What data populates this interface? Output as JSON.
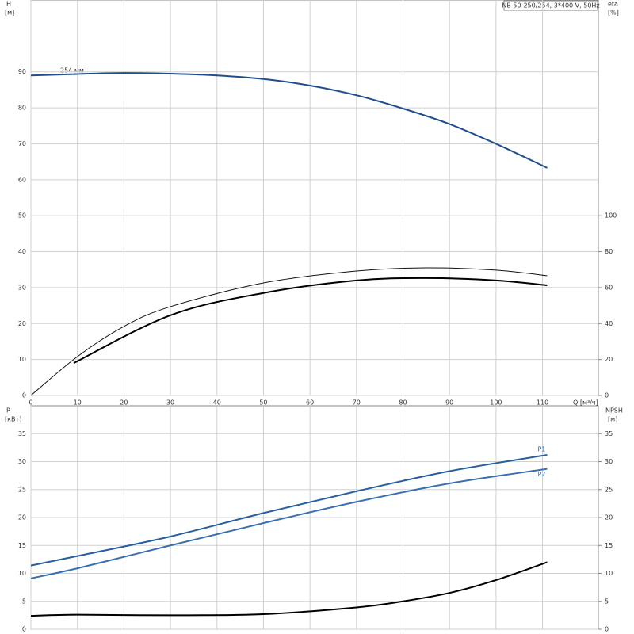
{
  "chart_data": [
    {
      "type": "line",
      "title": "NB 50-250/254, 3*400 V, 50Hz",
      "annotation": "254 мм",
      "y_label": "H",
      "y_unit": "[м]",
      "y2_label": "eta",
      "y2_unit": "[%]",
      "x_label": "Q [м³/ч]",
      "xlim": [
        0,
        122
      ],
      "xticks": [
        0,
        10,
        20,
        30,
        40,
        50,
        60,
        70,
        80,
        90,
        100,
        110
      ],
      "ylim": [
        0,
        110
      ],
      "yticks": [
        0,
        10,
        20,
        30,
        40,
        50,
        60,
        70,
        80,
        90
      ],
      "y2lim": [
        0,
        220
      ],
      "y2ticks": [
        0,
        20,
        40,
        60,
        80,
        100
      ],
      "grid": true,
      "series": [
        {
          "color": "#1f4e8c",
          "x": [
            0,
            10,
            20,
            30,
            40,
            50,
            60,
            70,
            80,
            90,
            100,
            111
          ],
          "values": [
            89,
            89.4,
            89.7,
            89.5,
            89,
            88,
            86.2,
            83.5,
            79.8,
            75.5,
            70,
            63.3
          ]
        },
        {
          "color": "#111111",
          "axis": "y2",
          "x": [
            0,
            10,
            20,
            30,
            50,
            70,
            85,
            100,
            111
          ],
          "values": [
            0,
            21.6,
            38.4,
            49.4,
            62.6,
            69.2,
            71,
            69.7,
            66.6
          ]
        },
        {
          "color": "#000000",
          "axis": "y2",
          "x": [
            9.2,
            30,
            50,
            70,
            85,
            100,
            111
          ],
          "values": [
            18,
            44.6,
            57,
            64,
            65.3,
            64,
            61.3
          ]
        }
      ]
    },
    {
      "type": "line",
      "y_label": "P",
      "y_unit": "[кВт]",
      "y2_label": "NPSH",
      "y2_unit": "[м]",
      "xlim": [
        0,
        122
      ],
      "ylim": [
        0,
        40
      ],
      "yticks": [
        0,
        5,
        10,
        15,
        20,
        25,
        30,
        35
      ],
      "y2lim": [
        0,
        40
      ],
      "y2ticks": [
        0,
        5,
        10,
        15,
        20,
        25,
        30,
        35
      ],
      "grid": true,
      "series": [
        {
          "name": "P1",
          "color": "#2a5f9e",
          "x": [
            0,
            10,
            30,
            50,
            70,
            90,
            111
          ],
          "values": [
            11.4,
            13.1,
            16.6,
            20.8,
            24.7,
            28.3,
            31.2
          ]
        },
        {
          "name": "P2",
          "color": "#3a6fae",
          "x": [
            0,
            10,
            30,
            50,
            70,
            90,
            111
          ],
          "values": [
            9.1,
            10.9,
            15,
            19,
            22.8,
            26.1,
            28.7
          ]
        },
        {
          "color": "#000000",
          "axis": "y2",
          "x": [
            0,
            10,
            30,
            50,
            70,
            80,
            90,
            100,
            111
          ],
          "values": [
            2.4,
            2.6,
            2.5,
            2.7,
            3.9,
            5,
            6.5,
            8.8,
            12
          ]
        }
      ]
    }
  ]
}
